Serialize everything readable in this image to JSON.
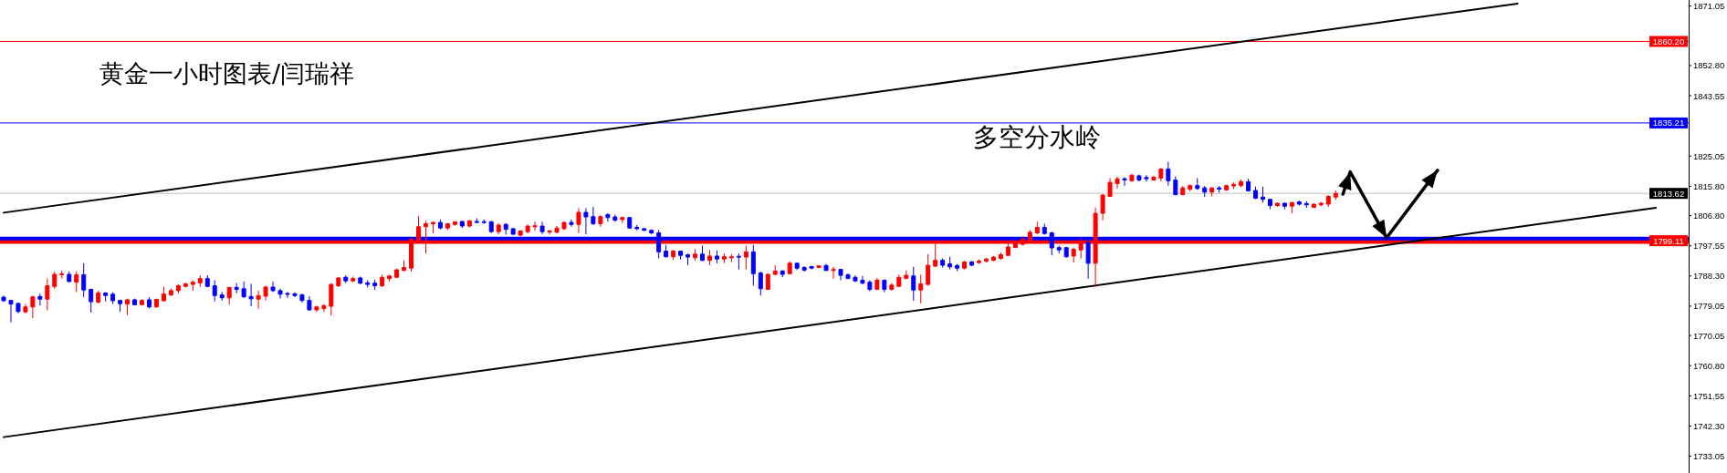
{
  "chart_data": {
    "type": "candlestick",
    "title": "黄金一小时图表/闫瑞祥",
    "annotations": [
      {
        "text": "多空分水岭",
        "y": 1835.21
      }
    ],
    "categories": [
      null,
      null,
      null,
      null,
      null,
      null,
      null,
      null,
      null,
      null,
      null,
      null,
      null,
      null,
      null,
      null,
      null,
      null,
      null,
      null,
      null,
      null,
      null,
      null,
      null,
      null,
      null,
      null,
      null,
      null,
      null,
      null,
      null,
      null,
      null,
      null,
      null,
      null,
      null,
      null,
      null,
      null,
      null,
      null,
      null,
      null,
      null,
      null,
      null,
      null,
      null,
      null,
      null,
      null,
      null,
      null,
      null,
      null,
      null,
      null,
      null,
      null,
      null,
      null,
      null,
      null,
      null,
      null,
      null,
      null,
      null,
      null,
      null,
      null,
      null,
      null,
      null,
      null,
      null,
      null,
      null,
      null,
      null,
      null,
      null,
      null,
      null,
      null,
      null,
      null,
      null,
      null,
      null,
      null,
      null,
      null,
      null,
      null,
      null,
      null,
      null,
      null,
      null,
      null,
      null,
      null,
      null,
      null,
      null,
      null,
      null,
      null,
      null,
      null,
      null,
      null,
      null,
      null,
      null,
      null,
      null,
      null,
      null,
      null,
      null,
      null,
      null,
      null,
      null,
      null,
      null,
      null,
      null,
      null,
      null,
      null,
      null,
      null,
      null,
      null,
      null,
      null,
      null,
      null,
      null,
      null,
      null,
      null,
      null,
      null,
      null,
      null,
      null,
      null,
      null,
      null,
      null,
      null,
      null,
      null,
      null,
      null,
      null,
      null,
      null,
      null,
      null,
      null,
      null,
      null,
      null,
      null,
      null,
      null,
      null,
      null,
      null,
      null,
      null,
      null,
      null,
      null,
      null,
      null,
      null,
      null,
      null,
      null,
      null,
      null,
      null,
      null,
      null,
      null,
      null,
      null,
      null,
      null,
      null,
      null,
      null,
      null,
      null,
      null,
      null,
      null,
      null,
      null,
      null,
      null,
      null,
      null,
      null,
      null,
      null,
      null,
      null,
      null,
      null,
      null,
      null,
      null,
      null,
      null,
      null,
      null,
      null,
      null,
      null,
      null,
      null,
      null
    ],
    "ohlc": [
      [
        1781.8,
        1782.3,
        1780.4,
        1780.7
      ],
      [
        1780.8,
        1781.0,
        1774.1,
        1779.7
      ],
      [
        1779.9,
        1780.1,
        1776.9,
        1777.4
      ],
      [
        1777.3,
        1779.7,
        1776.9,
        1778.8
      ],
      [
        1778.8,
        1782.3,
        1775.4,
        1781.9
      ],
      [
        1782.0,
        1782.9,
        1779.3,
        1781.2
      ],
      [
        1781.2,
        1787.5,
        1777.7,
        1785.3
      ],
      [
        1785.1,
        1789.6,
        1784.4,
        1788.8
      ],
      [
        1788.7,
        1789.9,
        1787.5,
        1789.0
      ],
      [
        1788.8,
        1789.7,
        1786.4,
        1786.6
      ],
      [
        1786.4,
        1789.7,
        1783.4,
        1788.7
      ],
      [
        1788.7,
        1792.2,
        1781.8,
        1784.0
      ],
      [
        1784.2,
        1784.4,
        1777.1,
        1780.4
      ],
      [
        1780.3,
        1783.8,
        1779.9,
        1783.1
      ],
      [
        1783.1,
        1783.3,
        1780.5,
        1782.3
      ],
      [
        1782.7,
        1783.3,
        1779.7,
        1780.7
      ],
      [
        1780.8,
        1781.0,
        1777.3,
        1779.8
      ],
      [
        1779.7,
        1781.4,
        1776.3,
        1781.0
      ],
      [
        1781.0,
        1781.4,
        1779.3,
        1779.5
      ],
      [
        1779.5,
        1781.2,
        1779.3,
        1780.8
      ],
      [
        1781.0,
        1781.8,
        1778.4,
        1778.8
      ],
      [
        1778.8,
        1781.4,
        1778.6,
        1781.1
      ],
      [
        1780.7,
        1785.0,
        1780.5,
        1782.8
      ],
      [
        1782.5,
        1784.4,
        1782.1,
        1783.8
      ],
      [
        1783.8,
        1785.8,
        1782.9,
        1785.3
      ],
      [
        1785.1,
        1786.2,
        1784.8,
        1785.9
      ],
      [
        1785.7,
        1787.0,
        1783.8,
        1786.4
      ],
      [
        1786.2,
        1788.5,
        1784.9,
        1787.5
      ],
      [
        1787.5,
        1788.5,
        1784.9,
        1785.1
      ],
      [
        1785.3,
        1787.0,
        1780.5,
        1782.3
      ],
      [
        1782.5,
        1783.4,
        1780.7,
        1781.6
      ],
      [
        1781.6,
        1784.9,
        1779.5,
        1784.8
      ],
      [
        1784.8,
        1786.1,
        1783.0,
        1784.2
      ],
      [
        1784.4,
        1786.6,
        1781.6,
        1781.9
      ],
      [
        1782.0,
        1785.9,
        1779.0,
        1781.3
      ],
      [
        1781.2,
        1783.8,
        1778.2,
        1782.3
      ],
      [
        1782.1,
        1785.3,
        1780.8,
        1784.9
      ],
      [
        1784.9,
        1786.6,
        1783.4,
        1783.8
      ],
      [
        1783.8,
        1784.4,
        1781.4,
        1782.7
      ],
      [
        1782.9,
        1783.4,
        1781.6,
        1782.7
      ],
      [
        1782.8,
        1783.3,
        1781.8,
        1782.3
      ],
      [
        1782.5,
        1782.9,
        1780.1,
        1780.8
      ],
      [
        1780.8,
        1782.1,
        1777.7,
        1777.9
      ],
      [
        1777.9,
        1779.2,
        1777.3,
        1778.8
      ],
      [
        1778.3,
        1779.7,
        1777.3,
        1779.2
      ],
      [
        1779.0,
        1786.1,
        1776.2,
        1785.7
      ],
      [
        1785.3,
        1787.9,
        1784.9,
        1787.7
      ],
      [
        1787.9,
        1788.5,
        1786.1,
        1786.8
      ],
      [
        1786.8,
        1788.1,
        1786.4,
        1787.5
      ],
      [
        1787.7,
        1788.1,
        1785.7,
        1786.1
      ],
      [
        1786.2,
        1787.0,
        1784.8,
        1785.7
      ],
      [
        1786.1,
        1787.2,
        1784.0,
        1785.3
      ],
      [
        1785.3,
        1788.7,
        1784.9,
        1787.9
      ],
      [
        1787.5,
        1788.7,
        1786.6,
        1788.3
      ],
      [
        1787.9,
        1790.5,
        1787.7,
        1790.2
      ],
      [
        1790.0,
        1793.1,
        1789.8,
        1790.9
      ],
      [
        1790.7,
        1800.0,
        1789.6,
        1799.6
      ],
      [
        1799.3,
        1806.7,
        1798.9,
        1803.4
      ],
      [
        1803.4,
        1805.2,
        1795.2,
        1804.3
      ],
      [
        1804.3,
        1804.9,
        1801.3,
        1804.7
      ],
      [
        1804.7,
        1805.6,
        1802.6,
        1803.0
      ],
      [
        1803.0,
        1804.5,
        1802.4,
        1804.3
      ],
      [
        1804.1,
        1805.0,
        1803.7,
        1804.9
      ],
      [
        1805.0,
        1805.2,
        1803.0,
        1803.6
      ],
      [
        1803.6,
        1805.4,
        1803.2,
        1805.2
      ],
      [
        1805.0,
        1806.0,
        1804.5,
        1804.7
      ],
      [
        1804.9,
        1805.6,
        1804.3,
        1804.7
      ],
      [
        1804.9,
        1805.2,
        1801.5,
        1801.9
      ],
      [
        1801.9,
        1804.5,
        1801.1,
        1803.9
      ],
      [
        1804.1,
        1804.5,
        1801.0,
        1802.6
      ],
      [
        1802.8,
        1803.0,
        1800.8,
        1801.1
      ],
      [
        1800.8,
        1802.3,
        1800.4,
        1802.1
      ],
      [
        1801.9,
        1804.1,
        1801.3,
        1803.6
      ],
      [
        1803.4,
        1805.0,
        1802.1,
        1803.7
      ],
      [
        1803.6,
        1804.9,
        1801.1,
        1801.9
      ],
      [
        1801.8,
        1802.4,
        1801.0,
        1802.1
      ],
      [
        1801.7,
        1803.6,
        1801.3,
        1803.0
      ],
      [
        1802.8,
        1805.0,
        1802.4,
        1804.7
      ],
      [
        1804.7,
        1805.6,
        1803.4,
        1804.1
      ],
      [
        1804.1,
        1809.1,
        1801.5,
        1807.8
      ],
      [
        1807.8,
        1809.1,
        1801.1,
        1806.4
      ],
      [
        1806.5,
        1809.5,
        1803.9,
        1804.3
      ],
      [
        1804.3,
        1806.9,
        1803.4,
        1806.5
      ],
      [
        1807.1,
        1807.5,
        1805.0,
        1806.2
      ],
      [
        1806.4,
        1807.1,
        1804.9,
        1805.4
      ],
      [
        1805.6,
        1806.5,
        1804.5,
        1806.2
      ],
      [
        1806.2,
        1806.4,
        1802.8,
        1803.0
      ],
      [
        1803.2,
        1803.9,
        1802.3,
        1802.8
      ],
      [
        1802.8,
        1803.0,
        1802.1,
        1802.3
      ],
      [
        1802.3,
        1802.6,
        1801.1,
        1801.5
      ],
      [
        1801.5,
        1802.4,
        1793.7,
        1795.7
      ],
      [
        1795.9,
        1797.8,
        1793.9,
        1794.2
      ],
      [
        1794.2,
        1796.3,
        1793.3,
        1795.9
      ],
      [
        1795.9,
        1796.1,
        1793.3,
        1794.6
      ],
      [
        1794.8,
        1795.2,
        1791.6,
        1794.1
      ],
      [
        1793.9,
        1796.5,
        1793.1,
        1795.0
      ],
      [
        1795.0,
        1797.6,
        1792.8,
        1793.1
      ],
      [
        1793.1,
        1796.3,
        1791.6,
        1794.4
      ],
      [
        1794.4,
        1796.1,
        1792.2,
        1793.5
      ],
      [
        1793.5,
        1795.2,
        1792.2,
        1794.2
      ],
      [
        1793.9,
        1795.0,
        1792.6,
        1794.2
      ],
      [
        1794.3,
        1795.2,
        1790.3,
        1794.1
      ],
      [
        1794.1,
        1797.6,
        1790.3,
        1795.7
      ],
      [
        1795.7,
        1797.8,
        1785.3,
        1789.0
      ],
      [
        1789.2,
        1789.6,
        1782.3,
        1784.4
      ],
      [
        1784.2,
        1789.0,
        1784.0,
        1788.8
      ],
      [
        1788.8,
        1791.6,
        1788.5,
        1789.8
      ],
      [
        1789.8,
        1790.1,
        1787.9,
        1788.8
      ],
      [
        1789.0,
        1792.8,
        1788.8,
        1792.2
      ],
      [
        1792.2,
        1792.4,
        1790.1,
        1790.7
      ],
      [
        1790.9,
        1791.3,
        1789.6,
        1790.1
      ],
      [
        1791.2,
        1791.4,
        1790.3,
        1790.7
      ],
      [
        1790.9,
        1791.5,
        1790.7,
        1791.4
      ],
      [
        1791.5,
        1792.0,
        1789.8,
        1790.0
      ],
      [
        1790.0,
        1791.1,
        1787.4,
        1790.3
      ],
      [
        1790.3,
        1790.5,
        1787.0,
        1788.5
      ],
      [
        1788.7,
        1789.0,
        1787.4,
        1787.5
      ],
      [
        1787.9,
        1788.5,
        1786.4,
        1786.8
      ],
      [
        1787.0,
        1788.3,
        1785.7,
        1786.1
      ],
      [
        1786.4,
        1787.0,
        1783.6,
        1784.2
      ],
      [
        1784.2,
        1787.7,
        1784.0,
        1787.0
      ],
      [
        1787.0,
        1787.2,
        1783.3,
        1784.2
      ],
      [
        1784.2,
        1786.1,
        1783.8,
        1785.5
      ],
      [
        1785.1,
        1788.7,
        1784.9,
        1787.9
      ],
      [
        1787.5,
        1790.0,
        1787.4,
        1788.5
      ],
      [
        1788.3,
        1791.1,
        1780.7,
        1784.0
      ],
      [
        1784.0,
        1788.7,
        1779.9,
        1785.9
      ],
      [
        1785.7,
        1795.0,
        1785.3,
        1791.6
      ],
      [
        1791.3,
        1798.2,
        1791.1,
        1793.1
      ],
      [
        1793.1,
        1793.7,
        1790.9,
        1791.6
      ],
      [
        1792.0,
        1794.2,
        1790.3,
        1791.1
      ],
      [
        1791.5,
        1792.0,
        1789.8,
        1790.7
      ],
      [
        1790.7,
        1792.9,
        1790.3,
        1792.6
      ],
      [
        1792.6,
        1792.9,
        1791.3,
        1791.6
      ],
      [
        1792.4,
        1793.3,
        1792.0,
        1792.9
      ],
      [
        1792.8,
        1793.9,
        1792.4,
        1793.5
      ],
      [
        1793.1,
        1794.4,
        1792.8,
        1794.1
      ],
      [
        1793.7,
        1795.5,
        1793.3,
        1794.8
      ],
      [
        1794.6,
        1799.1,
        1794.4,
        1797.2
      ],
      [
        1797.0,
        1799.1,
        1796.9,
        1798.3
      ],
      [
        1798.0,
        1800.4,
        1797.6,
        1799.6
      ],
      [
        1799.3,
        1802.4,
        1799.1,
        1801.7
      ],
      [
        1801.5,
        1805.0,
        1801.1,
        1803.2
      ],
      [
        1803.2,
        1804.3,
        1801.0,
        1801.3
      ],
      [
        1801.5,
        1801.9,
        1794.6,
        1796.9
      ],
      [
        1797.0,
        1797.6,
        1795.2,
        1796.3
      ],
      [
        1797.0,
        1797.0,
        1793.9,
        1794.2
      ],
      [
        1794.4,
        1797.0,
        1792.4,
        1796.5
      ],
      [
        1796.3,
        1800.0,
        1793.7,
        1798.3
      ],
      [
        1798.7,
        1798.9,
        1787.5,
        1792.2
      ],
      [
        1792.2,
        1809.3,
        1784.9,
        1807.5
      ],
      [
        1807.5,
        1813.4,
        1805.4,
        1813.1
      ],
      [
        1812.7,
        1818.3,
        1812.5,
        1817.0
      ],
      [
        1816.6,
        1818.8,
        1815.1,
        1818.1
      ],
      [
        1818.1,
        1818.6,
        1815.9,
        1817.7
      ],
      [
        1817.5,
        1819.6,
        1817.2,
        1819.2
      ],
      [
        1819.0,
        1819.4,
        1817.3,
        1817.7
      ],
      [
        1818.5,
        1819.2,
        1817.2,
        1818.1
      ],
      [
        1817.7,
        1819.0,
        1817.5,
        1818.6
      ],
      [
        1818.3,
        1821.4,
        1817.3,
        1821.1
      ],
      [
        1821.1,
        1823.3,
        1816.0,
        1817.5
      ],
      [
        1817.7,
        1818.8,
        1813.1,
        1813.2
      ],
      [
        1813.2,
        1815.9,
        1813.1,
        1815.3
      ],
      [
        1814.9,
        1816.4,
        1814.2,
        1816.0
      ],
      [
        1816.0,
        1818.3,
        1814.7,
        1815.1
      ],
      [
        1815.3,
        1815.9,
        1812.5,
        1814.0
      ],
      [
        1814.0,
        1815.5,
        1812.7,
        1815.3
      ],
      [
        1815.3,
        1815.9,
        1813.8,
        1814.9
      ],
      [
        1814.7,
        1816.2,
        1814.4,
        1816.0
      ],
      [
        1815.9,
        1817.0,
        1814.9,
        1816.4
      ],
      [
        1816.0,
        1817.9,
        1815.5,
        1817.2
      ],
      [
        1817.2,
        1818.1,
        1814.2,
        1814.4
      ],
      [
        1814.5,
        1815.7,
        1811.9,
        1812.1
      ],
      [
        1812.5,
        1815.7,
        1810.8,
        1811.8
      ],
      [
        1811.8,
        1811.9,
        1808.8,
        1809.9
      ],
      [
        1809.9,
        1810.8,
        1809.5,
        1810.6
      ],
      [
        1810.6,
        1810.8,
        1808.8,
        1809.7
      ],
      [
        1809.7,
        1811.0,
        1807.5,
        1810.8
      ],
      [
        1811.0,
        1811.4,
        1809.9,
        1810.3
      ],
      [
        1810.5,
        1811.2,
        1809.2,
        1810.1
      ],
      [
        1809.3,
        1810.5,
        1809.2,
        1810.3
      ],
      [
        1810.1,
        1811.0,
        1809.7,
        1810.6
      ],
      [
        1810.3,
        1813.1,
        1809.5,
        1812.7
      ],
      [
        1812.5,
        1814.5,
        1811.6,
        1813.6
      ],
      null,
      null,
      null,
      null,
      null,
      null,
      null,
      null,
      null,
      null,
      null,
      null,
      null,
      null,
      null,
      null,
      null,
      null,
      null,
      null,
      null,
      null,
      null,
      null,
      null,
      null,
      null,
      null,
      null,
      null,
      null,
      null,
      null,
      null,
      null,
      null,
      null,
      null,
      null,
      null,
      null,
      null,
      null,
      null,
      null,
      null,
      null,
      null
    ],
    "colors": [
      "#0000ff",
      "#0000ff",
      "#0000ff",
      "#ff0000",
      "#ff0000",
      "#0000ff",
      "#ff0000",
      "#ff0000",
      "#ff0000",
      "#0000ff",
      "#ff0000",
      "#0000ff",
      "#0000ff",
      "#ff0000",
      "#0000ff",
      "#0000ff",
      "#0000ff",
      "#ff0000",
      "#0000ff",
      "#ff0000",
      "#0000ff",
      "#ff0000",
      "#ff0000",
      "#ff0000",
      "#ff0000",
      "#ff0000",
      "#ff0000",
      "#ff0000",
      "#0000ff",
      "#0000ff",
      "#0000ff",
      "#ff0000",
      "#0000ff",
      "#0000ff",
      "#0000ff",
      "#ff0000",
      "#ff0000",
      "#0000ff",
      "#0000ff",
      "#0000ff",
      "#0000ff",
      "#0000ff",
      "#0000ff",
      "#ff0000",
      "#ff0000",
      "#ff0000",
      "#ff0000",
      "#0000ff",
      "#ff0000",
      "#0000ff",
      "#0000ff",
      "#0000ff",
      "#ff0000",
      "#ff0000",
      "#ff0000",
      "#ff0000",
      "#ff0000",
      "#ff0000",
      "#ff0000",
      "#ff0000",
      "#0000ff",
      "#ff0000",
      "#ff0000",
      "#0000ff",
      "#ff0000",
      "#0000ff",
      "#0000ff",
      "#0000ff",
      "#ff0000",
      "#0000ff",
      "#0000ff",
      "#ff0000",
      "#ff0000",
      "#ff0000",
      "#0000ff",
      "#ff0000",
      "#ff0000",
      "#ff0000",
      "#0000ff",
      "#ff0000",
      "#0000ff",
      "#0000ff",
      "#ff0000",
      "#0000ff",
      "#0000ff",
      "#ff0000",
      "#0000ff",
      "#0000ff",
      "#0000ff",
      "#0000ff",
      "#0000ff",
      "#0000ff",
      "#ff0000",
      "#0000ff",
      "#0000ff",
      "#ff0000",
      "#0000ff",
      "#ff0000",
      "#0000ff",
      "#ff0000",
      "#ff0000",
      "#0000ff",
      "#ff0000",
      "#0000ff",
      "#0000ff",
      "#ff0000",
      "#ff0000",
      "#0000ff",
      "#ff0000",
      "#0000ff",
      "#0000ff",
      "#0000ff",
      "#ff0000",
      "#0000ff",
      "#ff0000",
      "#0000ff",
      "#0000ff",
      "#0000ff",
      "#0000ff",
      "#0000ff",
      "#ff0000",
      "#0000ff",
      "#ff0000",
      "#ff0000",
      "#ff0000",
      "#0000ff",
      "#ff0000",
      "#ff0000",
      "#ff0000",
      "#0000ff",
      "#0000ff",
      "#0000ff",
      "#ff0000",
      "#0000ff",
      "#ff0000",
      "#ff0000",
      "#ff0000",
      "#ff0000",
      "#ff0000",
      "#ff0000",
      "#ff0000",
      "#ff0000",
      "#ff0000",
      "#0000ff",
      "#0000ff",
      "#0000ff",
      "#0000ff",
      "#ff0000",
      "#ff0000",
      "#0000ff",
      "#ff0000",
      "#ff0000",
      "#ff0000",
      "#ff0000",
      "#0000ff",
      "#ff0000",
      "#0000ff",
      "#0000ff",
      "#ff0000",
      "#ff0000",
      "#0000ff",
      "#0000ff",
      "#ff0000",
      "#ff0000",
      "#0000ff",
      "#0000ff",
      "#ff0000",
      "#0000ff",
      "#ff0000",
      "#ff0000",
      "#ff0000",
      "#0000ff",
      "#0000ff",
      "#0000ff",
      "#0000ff",
      "#ff0000",
      "#0000ff",
      "#ff0000",
      "#0000ff",
      "#0000ff",
      "#ff0000",
      "#ff0000",
      "#ff0000",
      "#ff0000",
      null,
      null,
      null,
      null,
      null,
      null,
      null,
      null,
      null,
      null,
      null,
      null,
      null,
      null,
      null,
      null,
      null,
      null,
      null,
      null,
      null,
      null,
      null,
      null,
      null,
      null,
      null,
      null,
      null,
      null,
      null,
      null,
      null,
      null,
      null,
      null,
      null,
      null,
      null,
      null,
      null,
      null,
      null,
      null,
      null,
      null,
      null,
      null
    ],
    "series": [
      {
        "type": "line",
        "color": "#000000",
        "values": [
          1807.7,
          null,
          null,
          null,
          null,
          null,
          null,
          null,
          null,
          null,
          null,
          null,
          null,
          null,
          null,
          null,
          null,
          null,
          null,
          null,
          null,
          null,
          null,
          null,
          null,
          null,
          null,
          null,
          null,
          null,
          null,
          null,
          null,
          null,
          null,
          null,
          null,
          null,
          null,
          null,
          null,
          null,
          null,
          null,
          null,
          null,
          null,
          null,
          null,
          null,
          null,
          null,
          null,
          null,
          null,
          null,
          null,
          null,
          null,
          null,
          null,
          null,
          null,
          null,
          null,
          null,
          null,
          null,
          null,
          null,
          null,
          null,
          null,
          null,
          null,
          null,
          null,
          null,
          null,
          null,
          null,
          null,
          null,
          null,
          null,
          null,
          null,
          null,
          null,
          null,
          null,
          null,
          null,
          null,
          null,
          null,
          null,
          null,
          null,
          null,
          null,
          null,
          null,
          null,
          null,
          null,
          null,
          null,
          null,
          null,
          null,
          null,
          null,
          null,
          null,
          null,
          null,
          null,
          null,
          null,
          null,
          null,
          null,
          null,
          null,
          null,
          null,
          null,
          null,
          null,
          null,
          null,
          null,
          null,
          null,
          null,
          null,
          null,
          null,
          null,
          null,
          null,
          null,
          null,
          null,
          null,
          null,
          null,
          null,
          null,
          null,
          null,
          null,
          null,
          null,
          null,
          null,
          null,
          null,
          null,
          null,
          null,
          null,
          null,
          null,
          null,
          null,
          null,
          null,
          null,
          null,
          null,
          null,
          null,
          null,
          null,
          null,
          null,
          null,
          null,
          null,
          null,
          null,
          null,
          null,
          null,
          null,
          null,
          null,
          null,
          null,
          null,
          null,
          null,
          null,
          null,
          null,
          null,
          null,
          null,
          null,
          null,
          null,
          null,
          null,
          null,
          null,
          null,
          1871.8,
          null,
          null,
          null,
          null,
          null,
          null,
          null,
          null,
          null,
          null,
          null,
          null,
          null,
          null,
          null,
          null,
          null,
          null,
          null,
          null,
          null,
          null,
          null
        ]
      },
      {
        "type": "line",
        "color": "#000000",
        "values": [
          1738.9,
          null,
          null,
          null,
          null,
          null,
          null,
          null,
          null,
          null,
          null,
          null,
          null,
          null,
          null,
          null,
          null,
          null,
          null,
          null,
          null,
          null,
          null,
          null,
          null,
          null,
          null,
          null,
          null,
          null,
          null,
          null,
          null,
          null,
          null,
          null,
          null,
          null,
          null,
          null,
          null,
          null,
          null,
          null,
          null,
          null,
          null,
          null,
          null,
          null,
          null,
          null,
          null,
          null,
          null,
          null,
          null,
          null,
          null,
          null,
          null,
          null,
          null,
          null,
          null,
          null,
          null,
          null,
          null,
          null,
          null,
          null,
          null,
          null,
          null,
          null,
          null,
          null,
          null,
          null,
          null,
          null,
          null,
          null,
          null,
          null,
          null,
          null,
          null,
          null,
          null,
          null,
          null,
          null,
          null,
          null,
          null,
          null,
          null,
          null,
          null,
          null,
          null,
          null,
          null,
          null,
          null,
          null,
          null,
          null,
          null,
          null,
          null,
          null,
          null,
          null,
          null,
          null,
          null,
          null,
          null,
          null,
          null,
          null,
          null,
          null,
          null,
          null,
          null,
          null,
          null,
          null,
          null,
          null,
          null,
          null,
          null,
          null,
          null,
          null,
          null,
          null,
          null,
          null,
          null,
          null,
          null,
          null,
          null,
          null,
          null,
          null,
          null,
          null,
          null,
          null,
          null,
          null,
          null,
          null,
          null,
          null,
          null,
          null,
          null,
          null,
          null,
          null,
          null,
          null,
          null,
          null,
          null,
          null,
          null,
          null,
          null,
          null,
          null,
          null,
          null,
          null,
          null,
          null,
          null,
          null,
          null,
          null,
          null,
          null,
          null,
          null,
          null,
          null,
          null,
          null,
          null,
          null,
          null,
          null,
          null,
          null,
          null,
          null,
          null,
          null,
          null,
          null,
          null,
          null,
          null,
          null,
          null,
          null,
          null,
          null,
          null,
          null,
          null,
          null,
          null,
          null,
          null,
          null,
          null,
          null,
          null,
          1809.2,
          null,
          null,
          null,
          null
        ]
      },
      {
        "type": "line",
        "color": "#000000",
        "values": [
          null,
          null,
          null,
          null,
          null,
          null,
          null,
          null,
          null,
          null,
          null,
          null,
          null,
          null,
          null,
          null,
          null,
          null,
          null,
          null,
          null,
          null,
          null,
          null,
          null,
          null,
          null,
          null,
          null,
          null,
          null,
          null,
          null,
          null,
          null,
          null,
          null,
          null,
          null,
          null,
          null,
          null,
          null,
          null,
          null,
          null,
          null,
          null,
          null,
          null,
          null,
          null,
          null,
          null,
          null,
          null,
          null,
          null,
          null,
          null,
          null,
          null,
          null,
          null,
          null,
          null,
          null,
          null,
          null,
          null,
          null,
          null,
          null,
          null,
          null,
          null,
          null,
          null,
          null,
          null,
          null,
          null,
          null,
          null,
          null,
          null,
          null,
          null,
          null,
          null,
          null,
          null,
          null,
          null,
          null,
          null,
          null,
          null,
          null,
          null,
          null,
          null,
          null,
          null,
          null,
          null,
          null,
          null,
          null,
          null,
          null,
          null,
          null,
          null,
          null,
          null,
          null,
          null,
          null,
          null,
          null,
          null,
          null,
          null,
          null,
          null,
          null,
          null,
          null,
          null,
          null,
          null,
          null,
          null,
          null,
          null,
          null,
          null,
          null,
          null,
          null,
          null,
          null,
          null,
          null,
          null,
          null,
          null,
          null,
          null,
          null,
          null,
          null,
          null,
          null,
          null,
          null,
          null,
          null,
          null,
          null,
          null,
          null,
          null,
          null,
          null,
          null,
          null,
          null,
          null,
          null,
          null,
          null,
          null,
          null,
          null,
          null,
          null,
          null,
          null,
          null,
          null,
          null,
          null,
          1813.4,
          1820.2,
          null,
          null,
          null,
          null,
          1800.0,
          null,
          null,
          null,
          null,
          null,
          null,
          1820.7,
          null,
          null,
          null,
          null,
          null,
          null,
          null,
          null,
          null,
          null,
          null,
          null,
          null,
          null,
          null,
          null,
          null,
          null,
          null,
          null,
          null,
          null,
          null,
          null,
          null,
          null,
          null,
          null,
          null,
          null,
          null,
          null,
          null,
          null
        ]
      }
    ],
    "ylim": [
      1727.9,
      1872.9
    ],
    "yticks": [
      1871.05,
      {
        "value": 1852.8,
        "label": "1852.80"
      },
      1843.55,
      1825.05,
      {
        "value": 1815.8,
        "label": "1815.80"
      },
      {
        "value": 1806.8,
        "label": "1806.80"
      },
      1797.55,
      {
        "value": 1788.3,
        "label": "1788.30"
      },
      1779.05,
      1770.05,
      {
        "value": 1760.8,
        "label": "1760.80"
      },
      1751.55,
      {
        "value": 1742.3,
        "label": "1742.30"
      },
      1733.05
    ],
    "ref_lines": [
      {
        "axis": "y",
        "value": 1860.2,
        "label": "1860.20",
        "color": "#ff0000"
      },
      {
        "axis": "y",
        "value": 1835.21,
        "label": "1835.21",
        "color": "#0000ff"
      },
      {
        "axis": "y",
        "value": 1813.62,
        "label": "1813.62",
        "color": "#c0c0c0"
      },
      {
        "axis": "y",
        "value": 1799.11,
        "label": "1799.11",
        "color": "#ff0000"
      },
      {
        "axis": "y",
        "value": 1799.8,
        "color": "#0000ff"
      }
    ],
    "tick_labels": "y"
  }
}
